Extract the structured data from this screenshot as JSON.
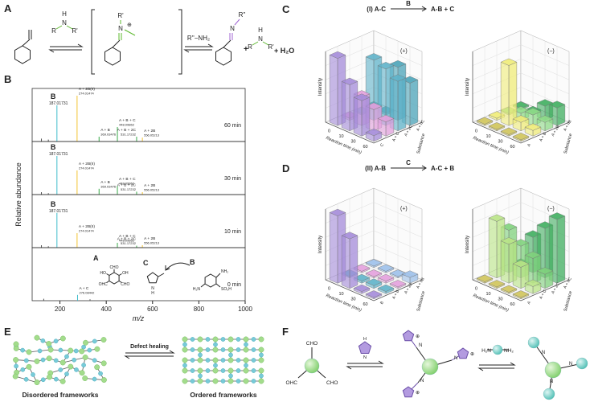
{
  "panel_a": {
    "label": "A",
    "amine_in": [
      "R",
      "H",
      "N",
      "R'"
    ],
    "iminium": [
      "R'",
      "N",
      "⊕"
    ],
    "reagent": "R''−NH₂",
    "imine": [
      "R''",
      "N"
    ],
    "plus": "+",
    "amine_out": [
      "R",
      "H",
      "N",
      "R'"
    ],
    "water": "+ H₂O"
  },
  "panel_b": {
    "label": "B",
    "y_label": "Relative abundance",
    "x_label": "m/z",
    "xlim": [
      80,
      1000
    ],
    "xticks": [
      200,
      400,
      600,
      800,
      1000
    ],
    "ylim": [
      0,
      100
    ],
    "spectra": [
      {
        "time": "60 min",
        "peaks": [
          {
            "mz": 120,
            "intensity": 6,
            "color": "#555555"
          },
          {
            "mz": 150,
            "intensity": 4,
            "color": "#555555"
          },
          {
            "mz": 187.01731,
            "intensity": 75,
            "color": "#3ebccb",
            "label": "B",
            "mass": "187.01731"
          },
          {
            "mz": 274.01474,
            "intensity": 95,
            "color": "#f2c230",
            "label": "A + 2B(II)",
            "mass": "274.01474"
          },
          {
            "mz": 369.03476,
            "intensity": 10,
            "color": "#3aaa4a",
            "label": "A + B",
            "mass": "369.03476"
          },
          {
            "mz": 448.09862,
            "intensity": 30,
            "color": "#3aaa4a",
            "label": "A + B + C",
            "mass": "448.09862"
          },
          {
            "mz": 531.17232,
            "intensity": 10,
            "color": "#3aaa4a",
            "label": "A + B + 2C",
            "mass": "531.17232"
          },
          {
            "mz": 556.05213,
            "intensity": 8,
            "color": "#f2c230",
            "label": "A + 2B",
            "mass": "556.05213"
          }
        ]
      },
      {
        "time": "30 min",
        "peaks": [
          {
            "mz": 120,
            "intensity": 5,
            "color": "#555555"
          },
          {
            "mz": 150,
            "intensity": 3,
            "color": "#555555"
          },
          {
            "mz": 187.01731,
            "intensity": 80,
            "color": "#3ebccb",
            "label": "B",
            "mass": "187.01731"
          },
          {
            "mz": 274.01474,
            "intensity": 50,
            "color": "#f2c230",
            "label": "A + 2B(II)",
            "mass": "274.01474"
          },
          {
            "mz": 369.03476,
            "intensity": 12,
            "color": "#3aaa4a",
            "label": "A + B",
            "mass": "369.03476"
          },
          {
            "mz": 448.09862,
            "intensity": 18,
            "color": "#3aaa4a",
            "label": "A + B + C",
            "mass": "448.09862"
          },
          {
            "mz": 531.17232,
            "intensity": 6,
            "color": "#3aaa4a",
            "label": "A + B + 2C",
            "mass": "531.17232"
          },
          {
            "mz": 556.05213,
            "intensity": 5,
            "color": "#f2c230",
            "label": "A + 2B",
            "mass": "556.05213"
          }
        ]
      },
      {
        "time": "10 min",
        "peaks": [
          {
            "mz": 120,
            "intensity": 5,
            "color": "#555555"
          },
          {
            "mz": 150,
            "intensity": 3,
            "color": "#555555"
          },
          {
            "mz": 187.01731,
            "intensity": 72,
            "color": "#3ebccb",
            "label": "B",
            "mass": "187.01731"
          },
          {
            "mz": 274.01474,
            "intensity": 30,
            "color": "#f2c230",
            "label": "A + 2B(II)",
            "mass": "274.01474"
          },
          {
            "mz": 448.09862,
            "intensity": 10,
            "color": "#3aaa4a",
            "label": "A + B + C",
            "mass": "448.09862"
          },
          {
            "mz": 531.17232,
            "intensity": 4,
            "color": "#3aaa4a",
            "label": "A + B + 2C",
            "mass": "531.17232"
          },
          {
            "mz": 556.05213,
            "intensity": 5,
            "color": "#f2c230",
            "label": "A + 2B",
            "mass": "556.05213"
          }
        ]
      },
      {
        "time": "0 min",
        "peaks": [
          {
            "mz": 130,
            "intensity": 4,
            "color": "#555555"
          },
          {
            "mz": 276.08442,
            "intensity": 12,
            "color": "#3ebccb",
            "label": "A + C",
            "mass": "276.08442"
          },
          {
            "mz": 330,
            "intensity": 3,
            "color": "#555555"
          }
        ]
      }
    ],
    "structures": [
      {
        "label": "A",
        "color": "#e0b020",
        "groups": [
          "CHO",
          "OH",
          "CHO",
          "OHC",
          "HO"
        ]
      },
      {
        "label": "C",
        "color": "#8a5cd0",
        "groups": [
          "N",
          "H"
        ]
      },
      {
        "label": "B",
        "color": "#3ebccb",
        "groups": [
          "NH₂",
          "SO₃H",
          "H₂N"
        ]
      }
    ]
  },
  "panel_c": {
    "label": "C",
    "scheme": {
      "reactant": "(I)  A-C",
      "reagent": "B",
      "products": "A-B + C"
    },
    "plots": [
      {
        "sign": "(+)",
        "z_label": "Intensity",
        "x_label": "Reaction time (min)",
        "y_label": "Substance",
        "times": [
          "0",
          "10",
          "30",
          "60"
        ],
        "zlim": [
          0,
          100
        ],
        "series": [
          {
            "name": "C",
            "color": "#a48bd9",
            "values": [
              95,
              65,
              50,
              8
            ]
          },
          {
            "name": "A + C",
            "color": "#e3a0dd",
            "values": [
              3,
              40,
              30,
              20
            ]
          },
          {
            "name": "A + 2C",
            "color": "#5fb3c9",
            "values": [
              2,
              85,
              80,
              70
            ]
          },
          {
            "name": "A + nC",
            "color": "#4aa3b8",
            "values": [
              2,
              3,
              75,
              60
            ]
          }
        ]
      },
      {
        "sign": "(−)",
        "z_label": "Intensity",
        "x_label": "Reaction time (min)",
        "y_label": "Substance",
        "times": [
          "0",
          "10",
          "30",
          "60"
        ],
        "zlim": [
          0,
          100
        ],
        "series": [
          {
            "name": "A",
            "color": "#cfc45a",
            "values": [
              2,
              2,
              2,
              2
            ]
          },
          {
            "name": "A + B",
            "color": "#f0ec78",
            "values": [
              3,
              85,
              12,
              8
            ]
          },
          {
            "name": "A + 2B",
            "color": "#8fdc88",
            "values": [
              2,
              10,
              15,
              12
            ]
          },
          {
            "name": "A + nB",
            "color": "#3fae5f",
            "values": [
              2,
              3,
              20,
              25
            ]
          }
        ]
      }
    ]
  },
  "panel_d": {
    "label": "D",
    "scheme": {
      "reactant": "(II)  A-B",
      "reagent": "C",
      "products": "A-C + B"
    },
    "plots": [
      {
        "sign": "(+)",
        "z_label": "Intensity",
        "x_label": "Reaction time (min)",
        "y_label": "Substance",
        "times": [
          "0",
          "10",
          "30",
          "60"
        ],
        "zlim": [
          0,
          100
        ],
        "series": [
          {
            "name": "B",
            "color": "#a48bd9",
            "values": [
              95,
              70,
              3,
              2
            ]
          },
          {
            "name": "A + B",
            "color": "#5fb3c9",
            "values": [
              2,
              3,
              4,
              3
            ]
          },
          {
            "name": "A + 2B",
            "color": "#e3a0dd",
            "values": [
              2,
              2,
              3,
              2
            ]
          },
          {
            "name": "A + nB",
            "color": "#9cc0ea",
            "values": [
              2,
              2,
              2,
              8
            ]
          }
        ]
      },
      {
        "sign": "(−)",
        "z_label": "Intensity",
        "x_label": "Reaction time (min)",
        "y_label": "Substance",
        "times": [
          "0",
          "10",
          "30",
          "60"
        ],
        "zlim": [
          0,
          100
        ],
        "series": [
          {
            "name": "A",
            "color": "#cfc45a",
            "values": [
              2,
              2,
              2,
              2
            ]
          },
          {
            "name": "A + C",
            "color": "#b9e486",
            "values": [
              80,
              55,
              30,
              10
            ]
          },
          {
            "name": "A + 2C",
            "color": "#7fd17c",
            "values": [
              60,
              45,
              35,
              20
            ]
          },
          {
            "name": "A + nC",
            "color": "#3fae5f",
            "values": [
              3,
              50,
              70,
              90
            ]
          }
        ]
      }
    ]
  },
  "panel_e": {
    "label": "E",
    "arrow_label": "Defect healing",
    "left": "Disordered frameworks",
    "right": "Ordered frameworks"
  },
  "panel_f": {
    "label": "F",
    "aldehyde": [
      "CHO",
      "OHC",
      "CHO"
    ],
    "pyrrolidine": [
      "N",
      "H"
    ],
    "iminium": [
      [
        "N",
        "⊕"
      ],
      [
        "N",
        "⊕"
      ],
      [
        "N",
        "⊕"
      ]
    ],
    "linker": [
      "H₂N",
      "NH₂"
    ],
    "imine": [
      "N",
      "N",
      "N"
    ]
  }
}
